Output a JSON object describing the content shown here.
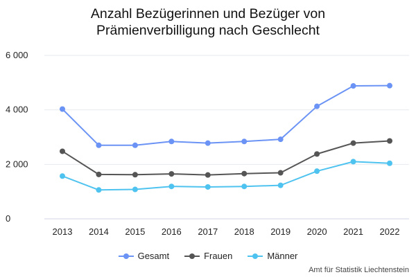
{
  "chart_data": {
    "type": "line",
    "title_lines": [
      "Anzahl Bezügerinnen und Bezüger von",
      "Prämienverbilligung nach Geschlecht"
    ],
    "xlabel": "",
    "ylabel": "",
    "categories": [
      "2013",
      "2014",
      "2015",
      "2016",
      "2017",
      "2018",
      "2019",
      "2020",
      "2021",
      "2022"
    ],
    "ylim": [
      0,
      6000
    ],
    "yticks": [
      0,
      2000,
      4000,
      6000
    ],
    "ytick_labels": [
      "0",
      "2 000",
      "4 000",
      "6 000"
    ],
    "grid": true,
    "legend_position": "bottom",
    "series": [
      {
        "name": "Gesamt",
        "color": "#6b93f5",
        "values": [
          4030,
          2700,
          2700,
          2840,
          2780,
          2840,
          2920,
          4130,
          4880,
          4890
        ]
      },
      {
        "name": "Frauen",
        "color": "#555555",
        "values": [
          2480,
          1630,
          1620,
          1650,
          1610,
          1660,
          1690,
          2380,
          2780,
          2860
        ]
      },
      {
        "name": "Männer",
        "color": "#4fc3f0",
        "values": [
          1570,
          1060,
          1080,
          1190,
          1170,
          1190,
          1230,
          1750,
          2100,
          2040
        ]
      }
    ],
    "source": "Amt für Statistik Liechtenstein"
  }
}
